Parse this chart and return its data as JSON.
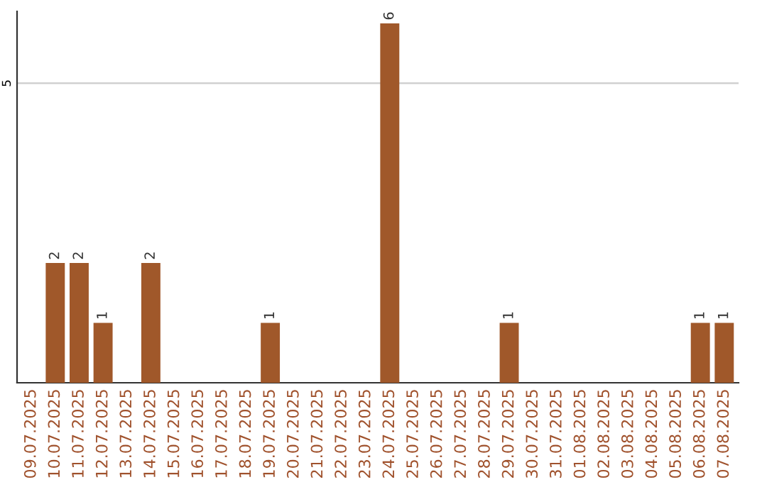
{
  "chart_data": {
    "type": "bar",
    "categories": [
      "09.07.2025",
      "10.07.2025",
      "11.07.2025",
      "12.07.2025",
      "13.07.2025",
      "14.07.2025",
      "15.07.2025",
      "16.07.2025",
      "17.07.2025",
      "18.07.2025",
      "19.07.2025",
      "20.07.2025",
      "21.07.2025",
      "22.07.2025",
      "23.07.2025",
      "24.07.2025",
      "25.07.2025",
      "26.07.2025",
      "27.07.2025",
      "28.07.2025",
      "29.07.2025",
      "30.07.2025",
      "31.07.2025",
      "01.08.2025",
      "02.08.2025",
      "03.08.2025",
      "04.08.2025",
      "05.08.2025",
      "06.08.2025",
      "07.08.2025"
    ],
    "values": [
      0,
      2,
      2,
      1,
      0,
      2,
      0,
      0,
      0,
      0,
      1,
      0,
      0,
      0,
      0,
      6,
      0,
      0,
      0,
      0,
      1,
      0,
      0,
      0,
      0,
      0,
      0,
      0,
      1,
      1
    ],
    "value_labels": [
      null,
      "2",
      "2",
      "1",
      null,
      "2",
      null,
      null,
      null,
      null,
      "1",
      null,
      null,
      null,
      null,
      "6",
      null,
      null,
      null,
      null,
      "1",
      null,
      null,
      null,
      null,
      null,
      null,
      null,
      "1",
      "1"
    ],
    "color": "#a0582a",
    "ylim": [
      0,
      6.2
    ],
    "yticks": [
      5
    ],
    "grid": "y",
    "legend": false
  }
}
